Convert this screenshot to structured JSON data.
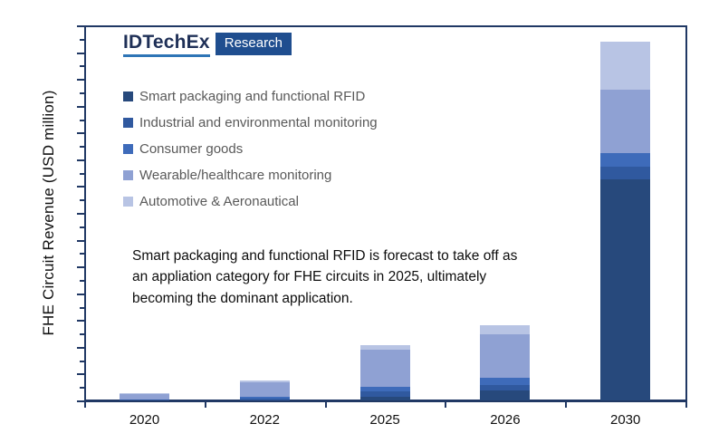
{
  "logo": {
    "brand": "IDTechEx",
    "product": "Research",
    "brand_color": "#1f3057",
    "underline_color": "#2e75b6",
    "box_color": "#1f4e8f"
  },
  "y_axis_title": "FHE Circuit Revenue (USD million)",
  "annotation": "Smart packaging and functional RFID is forecast to take off as an appliation category for FHE circuits in 2025, ultimately becoming the dominant application.",
  "axis_color": "#203864",
  "legend_text_color": "#595959",
  "chart_data": {
    "type": "bar",
    "stacked": true,
    "title": "",
    "xlabel": "",
    "ylabel": "FHE Circuit Revenue (USD million)",
    "legend_position": "top-left inside plot",
    "grid": false,
    "y_tick_labels": "none shown (unlabeled tick marks only)",
    "values_note": "relative stack heights estimated from pixels; no numeric axis labels visible",
    "categories": [
      "2020",
      "2022",
      "2025",
      "2026",
      "2030"
    ],
    "series": [
      {
        "name": "Smart packaging and functional RFID",
        "color": "#27497c",
        "values": [
          0,
          0,
          4,
          11,
          244
        ]
      },
      {
        "name": "Industrial and environmental monitoring",
        "color": "#30599f",
        "values": [
          1,
          2,
          6,
          6,
          14
        ]
      },
      {
        "name": "Consumer goods",
        "color": "#3e6bba",
        "values": [
          0,
          2,
          5,
          8,
          15
        ]
      },
      {
        "name": "Wearable/healthcare monitoring",
        "color": "#8fa1d3",
        "values": [
          6,
          16,
          41,
          48,
          70
        ]
      },
      {
        "name": "Automotive & Aeronautical",
        "color": "#b8c4e4",
        "values": [
          1,
          2,
          5,
          10,
          53
        ]
      }
    ]
  }
}
